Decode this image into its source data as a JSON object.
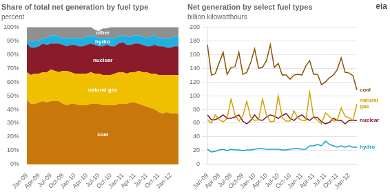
{
  "chart_data": [
    {
      "type": "area",
      "stacked": true,
      "title": "Share of total net generation by fuel type",
      "subtitle": "percent",
      "categories": [
        "Jan-09",
        null,
        null,
        "Apr-09",
        null,
        null,
        "Jul-09",
        null,
        null,
        "Oct-09",
        null,
        null,
        "Jan-10",
        null,
        null,
        "Apr-10",
        null,
        null,
        "Jul-10",
        null,
        null,
        "Oct-10",
        null,
        null,
        "Jan-11",
        null,
        null,
        "Apr-11",
        null,
        null,
        "Jul-11",
        null,
        null,
        "Oct-11",
        null,
        null,
        "Jan-12",
        null,
        null
      ],
      "series": [
        {
          "name": "coal",
          "color": "#c8780a",
          "values": [
            47,
            44,
            44,
            45,
            46,
            45,
            46,
            46,
            46,
            44,
            43,
            44,
            44,
            43,
            43,
            43,
            44,
            44,
            44,
            43,
            43,
            43,
            43,
            44,
            44,
            44,
            45,
            45,
            44,
            43,
            42,
            41,
            40,
            38,
            37,
            38,
            37,
            37,
            37
          ]
        },
        {
          "name": "natural gas",
          "color": "#f0c000",
          "values": [
            20,
            21,
            22,
            21,
            21,
            22,
            23,
            22,
            21,
            24,
            25,
            23,
            22,
            23,
            23,
            23,
            23,
            22,
            22,
            22,
            22,
            22,
            23,
            23,
            23,
            22,
            22,
            22,
            24,
            24,
            25,
            25,
            26,
            27,
            28,
            27,
            28,
            28,
            28
          ]
        },
        {
          "name": "nuclear",
          "color": "#8b1a2a",
          "values": [
            21,
            20,
            19,
            20,
            21,
            20,
            19,
            20,
            21,
            19,
            18,
            20,
            21,
            20,
            20,
            21,
            21,
            21,
            20,
            21,
            22,
            21,
            20,
            21,
            22,
            21,
            20,
            21,
            20,
            20,
            19,
            20,
            21,
            21,
            21,
            20,
            20,
            21,
            21
          ]
        },
        {
          "name": "hydro",
          "color": "#20b0e0",
          "values": [
            3,
            4,
            5,
            4,
            4,
            5,
            6,
            6,
            5,
            5,
            6,
            5,
            5,
            6,
            6,
            6,
            6,
            6,
            6,
            6,
            5,
            6,
            6,
            5,
            5,
            6,
            6,
            6,
            6,
            6,
            6,
            7,
            7,
            6,
            6,
            7,
            7,
            7,
            7
          ]
        },
        {
          "name": "other",
          "color": "#909090",
          "values": [
            9,
            11,
            10,
            10,
            8,
            8,
            6,
            6,
            7,
            8,
            8,
            8,
            8,
            8,
            8,
            7,
            6,
            5,
            5,
            7,
            7,
            8,
            8,
            7,
            6,
            7,
            7,
            6,
            6,
            7,
            8,
            7,
            6,
            8,
            8,
            8,
            8,
            7,
            7
          ]
        }
      ],
      "ylim": [
        0,
        100
      ],
      "yticks": [
        {
          "value": 0,
          "label": "0%"
        },
        {
          "value": 10,
          "label": "10%"
        },
        {
          "value": 20,
          "label": "20%"
        },
        {
          "value": 30,
          "label": "30%"
        },
        {
          "value": 40,
          "label": "40%"
        },
        {
          "value": 50,
          "label": "50%"
        },
        {
          "value": 60,
          "label": "60%"
        },
        {
          "value": 70,
          "label": "70%"
        },
        {
          "value": 80,
          "label": "80%"
        },
        {
          "value": 90,
          "label": "90%"
        },
        {
          "value": 100,
          "label": "100%"
        }
      ],
      "grid": false
    },
    {
      "type": "line",
      "title": "Net generation by select fuel types",
      "subtitle": "billion kilowatthours",
      "annotations": [
        "eia"
      ],
      "categories": [
        "Jan-09",
        null,
        null,
        "Apr-09",
        null,
        null,
        "Jul-09",
        null,
        null,
        "Oct-09",
        null,
        null,
        "Jan-10",
        null,
        null,
        "Apr-10",
        null,
        null,
        "Jul-10",
        null,
        null,
        "Oct-10",
        null,
        null,
        "Jan-11",
        null,
        null,
        "Apr-11",
        null,
        null,
        "Jul-11",
        null,
        null,
        "Oct-11",
        null,
        null,
        "Jan-12",
        null,
        null
      ],
      "series": [
        {
          "name": "coal",
          "color": "#8b5000",
          "values": [
            174,
            130,
            132,
            148,
            163,
            131,
            141,
            142,
            163,
            131,
            134,
            148,
            168,
            140,
            141,
            151,
            174,
            141,
            147,
            130,
            130,
            124,
            130,
            131,
            130,
            143,
            151,
            131,
            131,
            116,
            120,
            126,
            130,
            138,
            155,
            134,
            133,
            129,
            108
          ]
        },
        {
          "name": "natural\ngas",
          "color": "#d4a000",
          "values": [
            65,
            60,
            72,
            65,
            62,
            67,
            95,
            72,
            63,
            70,
            92,
            68,
            64,
            65,
            95,
            72,
            62,
            63,
            100,
            68,
            63,
            63,
            78,
            67,
            64,
            64,
            105,
            68,
            64,
            59,
            75,
            70,
            63,
            64,
            82,
            70,
            68,
            64,
            88
          ]
        },
        {
          "name": "nuclear",
          "color": "#7b1525",
          "values": [
            72,
            65,
            65,
            68,
            72,
            67,
            67,
            69,
            72,
            63,
            59,
            64,
            72,
            65,
            64,
            69,
            72,
            70,
            67,
            71,
            74,
            67,
            64,
            69,
            72,
            67,
            64,
            69,
            68,
            62,
            59,
            61,
            67,
            64,
            64,
            59,
            64,
            64,
            64
          ]
        },
        {
          "name": "hydro",
          "color": "#10a0d0",
          "values": [
            22,
            18,
            19,
            21,
            22,
            20,
            22,
            21,
            21,
            20,
            21,
            21,
            22,
            23,
            23,
            22,
            22,
            22,
            22,
            21,
            21,
            22,
            23,
            23,
            22,
            22,
            27,
            27,
            29,
            27,
            34,
            29,
            27,
            25,
            27,
            25,
            27,
            25,
            25
          ]
        }
      ],
      "ylim": [
        0,
        200
      ],
      "yticks": [
        0,
        20,
        40,
        60,
        80,
        100,
        120,
        140,
        160,
        180,
        200
      ],
      "grid": true
    }
  ]
}
